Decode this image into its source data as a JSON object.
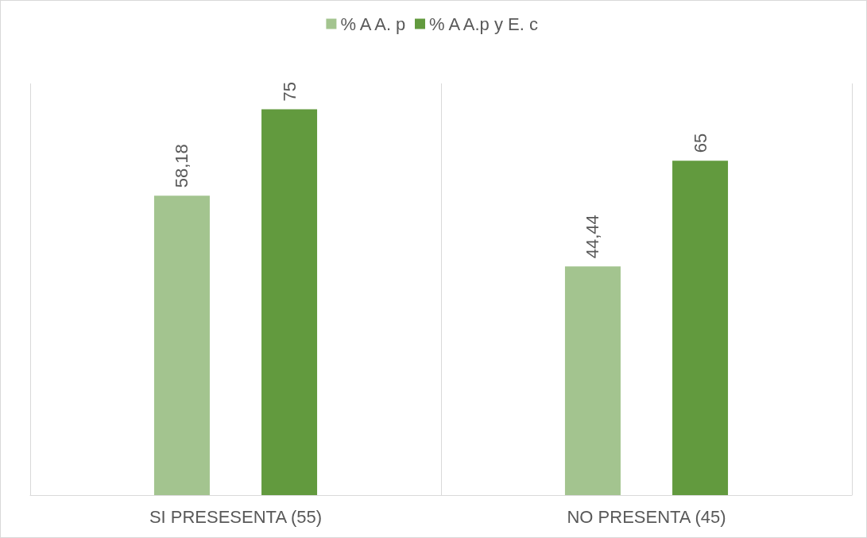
{
  "chart_data": {
    "type": "bar",
    "categories": [
      "SI PRESESENTA (55)",
      "NO PRESENTA (45)"
    ],
    "series": [
      {
        "name": "% A A. p",
        "color": "#a3c48f",
        "values": [
          58.18,
          44.44
        ],
        "value_labels": [
          "58,18",
          "44,44"
        ]
      },
      {
        "name": "% A A.p y E. c",
        "color": "#629a3e",
        "values": [
          75,
          65
        ],
        "value_labels": [
          "75",
          "65"
        ]
      }
    ],
    "ylim": [
      0,
      80
    ],
    "tick_labels": "x",
    "grid": "x",
    "legend": "top"
  }
}
